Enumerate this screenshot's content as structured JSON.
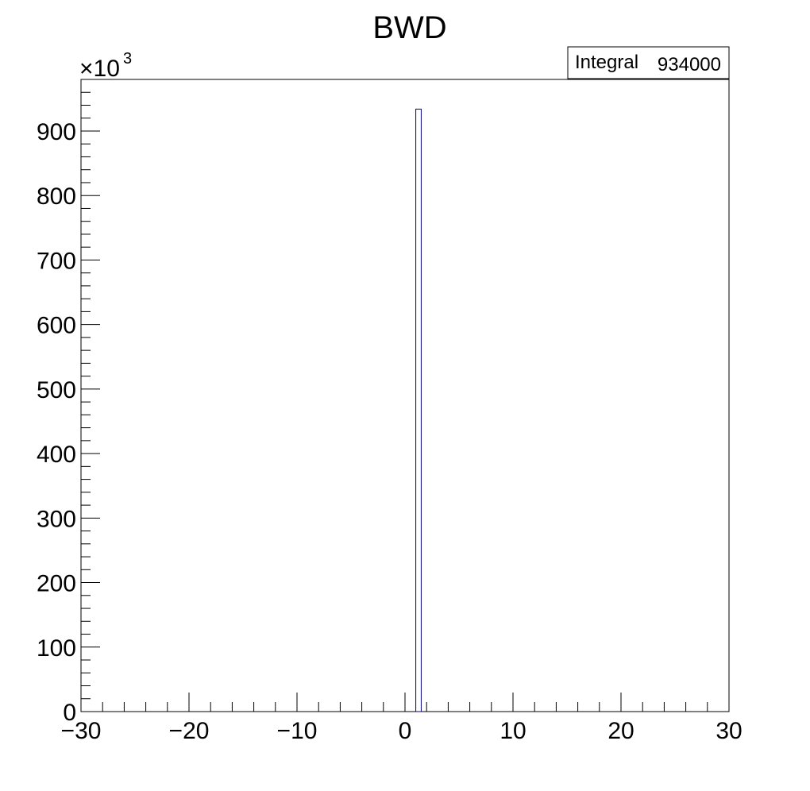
{
  "chart_data": {
    "type": "bar",
    "title": "BWD",
    "xlabel": "",
    "ylabel": "",
    "xlim": [
      -30,
      30
    ],
    "ylim": [
      0,
      980000
    ],
    "y_multiplier_label": "×10",
    "y_multiplier_exponent": "3",
    "x_ticks": [
      -30,
      -20,
      -10,
      0,
      10,
      20,
      30
    ],
    "x_tick_labels": [
      "−30",
      "−20",
      "−10",
      "0",
      "10",
      "20",
      "30"
    ],
    "y_ticks": [
      0,
      100000,
      200000,
      300000,
      400000,
      500000,
      600000,
      700000,
      800000,
      900000
    ],
    "y_tick_labels": [
      "0",
      "100",
      "200",
      "300",
      "400",
      "500",
      "600",
      "700",
      "800",
      "900"
    ],
    "bins": [
      {
        "x_low": 1.0,
        "x_high": 1.5,
        "value": 934000
      }
    ],
    "stats": {
      "label": "Integral",
      "value": "934000"
    },
    "colors": {
      "line": "#000000",
      "background": "#ffffff",
      "bar_fill": "#ffffff",
      "bar_edge": "#000080"
    }
  }
}
